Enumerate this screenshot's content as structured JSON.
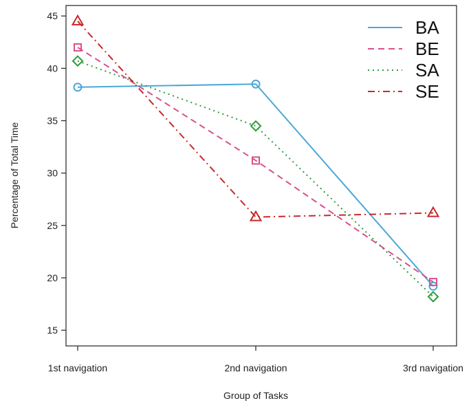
{
  "chart_data": {
    "type": "line",
    "xlabel": "Group of Tasks",
    "ylabel": "Percentage of Total Time",
    "categories": [
      "1st navigation",
      "2nd navigation",
      "3rd navigation"
    ],
    "ylim": [
      13.5,
      46
    ],
    "yticks": [
      15,
      20,
      25,
      30,
      35,
      40,
      45
    ],
    "grid": false,
    "legend_position": "top-right",
    "series": [
      {
        "name": "BA",
        "values": [
          38.2,
          38.5,
          19.2
        ],
        "color": "#4aa8d8",
        "dash": "solid",
        "marker": "circle"
      },
      {
        "name": "BE",
        "values": [
          42.0,
          31.2,
          19.6
        ],
        "color": "#d94f8a",
        "dash": "dashed",
        "marker": "square"
      },
      {
        "name": "SA",
        "values": [
          40.7,
          34.5,
          18.2
        ],
        "color": "#2e9a3a",
        "dash": "dotted",
        "marker": "diamond"
      },
      {
        "name": "SE",
        "values": [
          44.5,
          25.8,
          26.2
        ],
        "color": "#c8282a",
        "dash": "dashdot",
        "marker": "triangle"
      }
    ]
  }
}
